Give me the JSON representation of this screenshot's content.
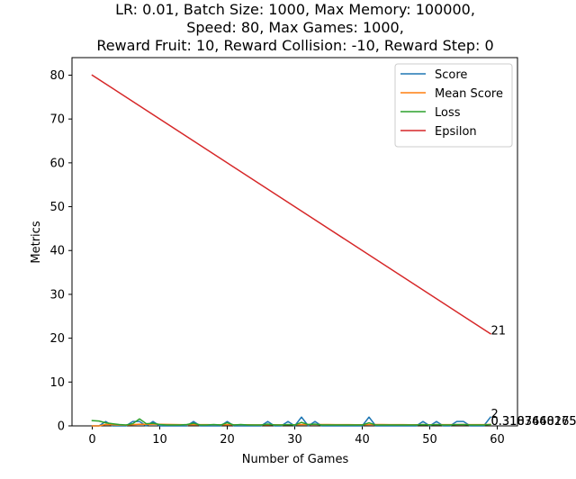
{
  "chart_data": {
    "type": "line",
    "title_lines": [
      "LR: 0.01, Batch Size: 1000, Max Memory: 100000,",
      "Speed: 80, Max Games: 1000,",
      "Reward Fruit: 10, Reward Collision: -10, Reward Step: 0"
    ],
    "xlabel": "Number of Games",
    "ylabel": "Metrics",
    "xlim": [
      -3,
      63
    ],
    "ylim": [
      0,
      84
    ],
    "xticks": [
      0,
      10,
      20,
      30,
      40,
      50,
      60
    ],
    "yticks": [
      0,
      10,
      20,
      30,
      40,
      50,
      60,
      70,
      80
    ],
    "grid": false,
    "legend_position": "top-right",
    "series": [
      {
        "name": "Score",
        "color": "#1f77b4",
        "x": [
          0,
          1,
          2,
          3,
          4,
          5,
          6,
          7,
          8,
          9,
          10,
          11,
          12,
          13,
          14,
          15,
          16,
          17,
          18,
          19,
          20,
          21,
          22,
          23,
          24,
          25,
          26,
          27,
          28,
          29,
          30,
          31,
          32,
          33,
          34,
          35,
          36,
          37,
          38,
          39,
          40,
          41,
          42,
          43,
          44,
          45,
          46,
          47,
          48,
          49,
          50,
          51,
          52,
          53,
          54,
          55,
          56,
          57,
          58,
          59
        ],
        "y": [
          0,
          0,
          1,
          0,
          0,
          0,
          1,
          1,
          0,
          1,
          0,
          0,
          0,
          0,
          0,
          1,
          0,
          0,
          0,
          0,
          1,
          0,
          0,
          0,
          0,
          0,
          1,
          0,
          0,
          1,
          0,
          2,
          0,
          1,
          0,
          0,
          0,
          0,
          0,
          0,
          0,
          2,
          0,
          0,
          0,
          0,
          0,
          0,
          0,
          1,
          0,
          1,
          0,
          0,
          1,
          1,
          0,
          0,
          0,
          2
        ]
      },
      {
        "name": "Mean Score",
        "color": "#ff7f0e",
        "x": [
          0,
          1,
          2,
          3,
          4,
          5,
          6,
          7,
          8,
          9,
          10,
          11,
          12,
          13,
          14,
          15,
          16,
          17,
          18,
          19,
          20,
          21,
          22,
          23,
          24,
          25,
          26,
          27,
          28,
          29,
          30,
          31,
          32,
          33,
          34,
          35,
          36,
          37,
          38,
          39,
          40,
          41,
          42,
          43,
          44,
          45,
          46,
          47,
          48,
          49,
          50,
          51,
          52,
          53,
          54,
          55,
          56,
          57,
          58,
          59
        ],
        "y": [
          0,
          0,
          0.33,
          0.25,
          0.2,
          0.17,
          0.29,
          0.38,
          0.33,
          0.4,
          0.36,
          0.33,
          0.31,
          0.29,
          0.27,
          0.31,
          0.29,
          0.28,
          0.26,
          0.25,
          0.29,
          0.27,
          0.26,
          0.25,
          0.24,
          0.23,
          0.26,
          0.25,
          0.24,
          0.27,
          0.26,
          0.31,
          0.3,
          0.32,
          0.31,
          0.3,
          0.29,
          0.29,
          0.28,
          0.27,
          0.27,
          0.31,
          0.3,
          0.3,
          0.29,
          0.28,
          0.28,
          0.27,
          0.27,
          0.28,
          0.27,
          0.29,
          0.28,
          0.28,
          0.29,
          0.3,
          0.29,
          0.29,
          0.28,
          0.32
        ]
      },
      {
        "name": "Loss",
        "color": "#2ca02c",
        "x": [
          0,
          1,
          2,
          3,
          4,
          5,
          6,
          7,
          8,
          9,
          10,
          11,
          12,
          13,
          14,
          15,
          16,
          17,
          18,
          19,
          20,
          21,
          22,
          23,
          24,
          25,
          26,
          27,
          28,
          29,
          30,
          31,
          32,
          33,
          34,
          35,
          36,
          37,
          38,
          39,
          40,
          41,
          42,
          43,
          44,
          45,
          46,
          47,
          48,
          49,
          50,
          51,
          52,
          53,
          54,
          55,
          56,
          57,
          58,
          59
        ],
        "y": [
          1.2,
          1.1,
          0.7,
          0.5,
          0.3,
          0.2,
          0.5,
          1.6,
          0.5,
          0.6,
          0.3,
          0.2,
          0.2,
          0.2,
          0.3,
          0.6,
          0.2,
          0.2,
          0.3,
          0.2,
          0.7,
          0.2,
          0.3,
          0.2,
          0.2,
          0.2,
          0.4,
          0.2,
          0.2,
          0.3,
          0.2,
          0.8,
          0.3,
          0.4,
          0.2,
          0.2,
          0.2,
          0.2,
          0.2,
          0.2,
          0.2,
          0.7,
          0.2,
          0.2,
          0.2,
          0.2,
          0.2,
          0.2,
          0.2,
          0.3,
          0.2,
          0.3,
          0.2,
          0.2,
          0.3,
          0.3,
          0.2,
          0.2,
          0.2,
          0.31
        ]
      },
      {
        "name": "Epsilon",
        "color": "#d62728",
        "x": [
          0,
          59
        ],
        "y": [
          80,
          21
        ]
      }
    ],
    "end_labels": [
      {
        "text": "21",
        "x": 59,
        "y": 21
      },
      {
        "text": "2",
        "x": 59,
        "y": 2
      },
      {
        "text": "0.3103448275862069",
        "x": 59,
        "y": 0.31
      },
      {
        "text": "0.3187660165",
        "x": 59,
        "y": 0.32
      }
    ]
  }
}
